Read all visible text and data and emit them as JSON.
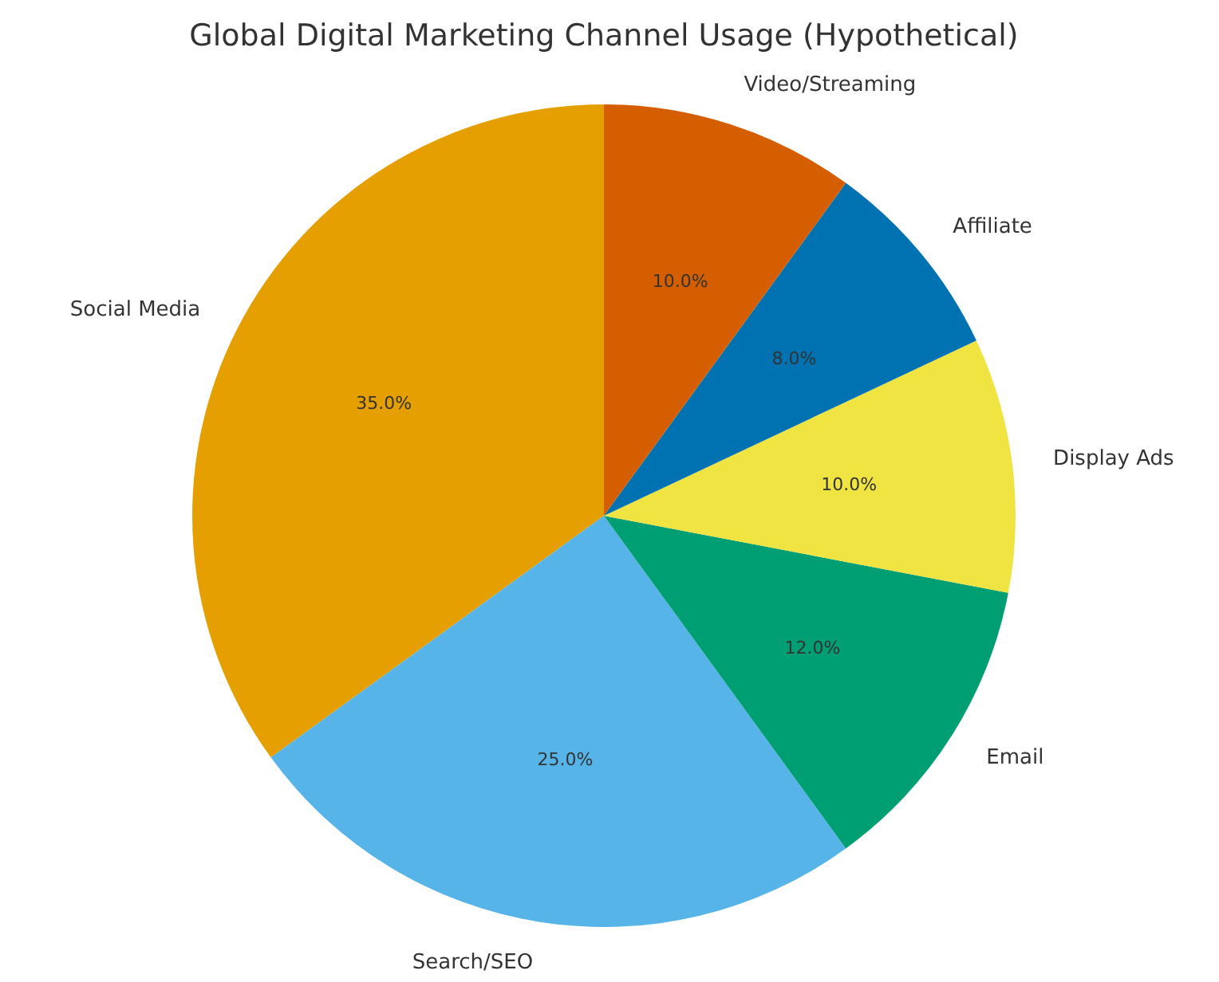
{
  "chart_data": {
    "type": "pie",
    "title": "Global Digital Marketing Channel Usage (Hypothetical)",
    "categories": [
      "Social Media",
      "Search/SEO",
      "Email",
      "Display Ads",
      "Affiliate",
      "Video/Streaming"
    ],
    "values": [
      35,
      25,
      12,
      10,
      8,
      10
    ],
    "colors": [
      "#e69f00",
      "#56b4e9",
      "#009e73",
      "#f0e442",
      "#0072b2",
      "#d55e00"
    ],
    "value_labels": [
      "35.0%",
      "25.0%",
      "12.0%",
      "10.0%",
      "8.0%",
      "10.0%"
    ]
  }
}
